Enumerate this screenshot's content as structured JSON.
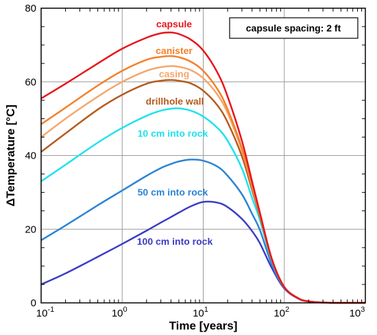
{
  "chart_data": {
    "type": "line",
    "x_scale": "log",
    "xlabel": "Time [years]",
    "ylabel": "ΔTemperature [°C]",
    "xlim": [
      0.1,
      1000
    ],
    "ylim": [
      0,
      80
    ],
    "x_ticks": [
      {
        "value": 0.1,
        "base": "10",
        "exp": "-1"
      },
      {
        "value": 1,
        "base": "10",
        "exp": "0"
      },
      {
        "value": 10,
        "base": "10",
        "exp": "1"
      },
      {
        "value": 100,
        "base": "10",
        "exp": "2"
      },
      {
        "value": 1000,
        "base": "10",
        "exp": "3"
      }
    ],
    "y_ticks": [
      0,
      20,
      40,
      60,
      80
    ],
    "grid": true,
    "annotation": "capsule spacing: 2 ft",
    "x": [
      0.1,
      0.2,
      0.5,
      1,
      2,
      3,
      4,
      5,
      7,
      10,
      15,
      20,
      30,
      40,
      50,
      70,
      100,
      150,
      200,
      300,
      500,
      1000
    ],
    "series": [
      {
        "name": "capsule",
        "color": "#e8141c",
        "values": [
          55.5,
          59.5,
          65,
          69,
          72,
          73.2,
          73.4,
          73,
          71.5,
          68.5,
          62.5,
          56,
          44,
          33,
          24.5,
          12,
          4.3,
          1.2,
          0.4,
          0.1,
          0,
          0
        ]
      },
      {
        "name": "canister",
        "color": "#f4802a",
        "values": [
          48.5,
          53,
          59,
          63,
          66,
          66.8,
          67,
          66.7,
          65.5,
          63,
          58,
          52.5,
          42,
          32,
          24.2,
          12,
          4.3,
          1.2,
          0.4,
          0.1,
          0,
          0
        ]
      },
      {
        "name": "casing",
        "color": "#f6a66a",
        "values": [
          45,
          50,
          56,
          60,
          63,
          64,
          64.3,
          64.1,
          63.2,
          61,
          56.5,
          51.5,
          41.3,
          31.6,
          24,
          11.9,
          4.3,
          1.2,
          0.4,
          0.1,
          0,
          0
        ]
      },
      {
        "name": "drillhole wall",
        "color": "#b65a1c",
        "values": [
          41,
          46,
          52.5,
          56.5,
          59.5,
          60.3,
          60.5,
          60.3,
          59.6,
          57.6,
          53.6,
          49,
          39.8,
          30.7,
          23.5,
          11.8,
          4.3,
          1.2,
          0.4,
          0.1,
          0,
          0
        ]
      },
      {
        "name": "10 cm into rock",
        "color": "#1ee2ee",
        "values": [
          33,
          37.5,
          43.5,
          47.5,
          50.8,
          52.2,
          52.7,
          52.8,
          52.2,
          50.6,
          47.5,
          44,
          36.5,
          28.5,
          22.5,
          11.5,
          4.3,
          1.2,
          0.4,
          0.1,
          0,
          0
        ]
      },
      {
        "name": "50 cm into rock",
        "color": "#2a84d4",
        "values": [
          17,
          21,
          26.5,
          30.5,
          34.5,
          36.6,
          37.7,
          38.4,
          38.9,
          38.6,
          37,
          34.5,
          29.5,
          24.2,
          19.8,
          10.5,
          4.1,
          1.2,
          0.4,
          0.1,
          0,
          0
        ]
      },
      {
        "name": "100 cm into rock",
        "color": "#3c3cc4",
        "values": [
          5,
          8,
          12.5,
          16,
          19.6,
          21.8,
          23.3,
          24.5,
          26.2,
          27.4,
          27.2,
          26,
          22.8,
          19.5,
          16.2,
          9.5,
          3.9,
          1.1,
          0.4,
          0.1,
          0,
          0
        ]
      }
    ]
  }
}
